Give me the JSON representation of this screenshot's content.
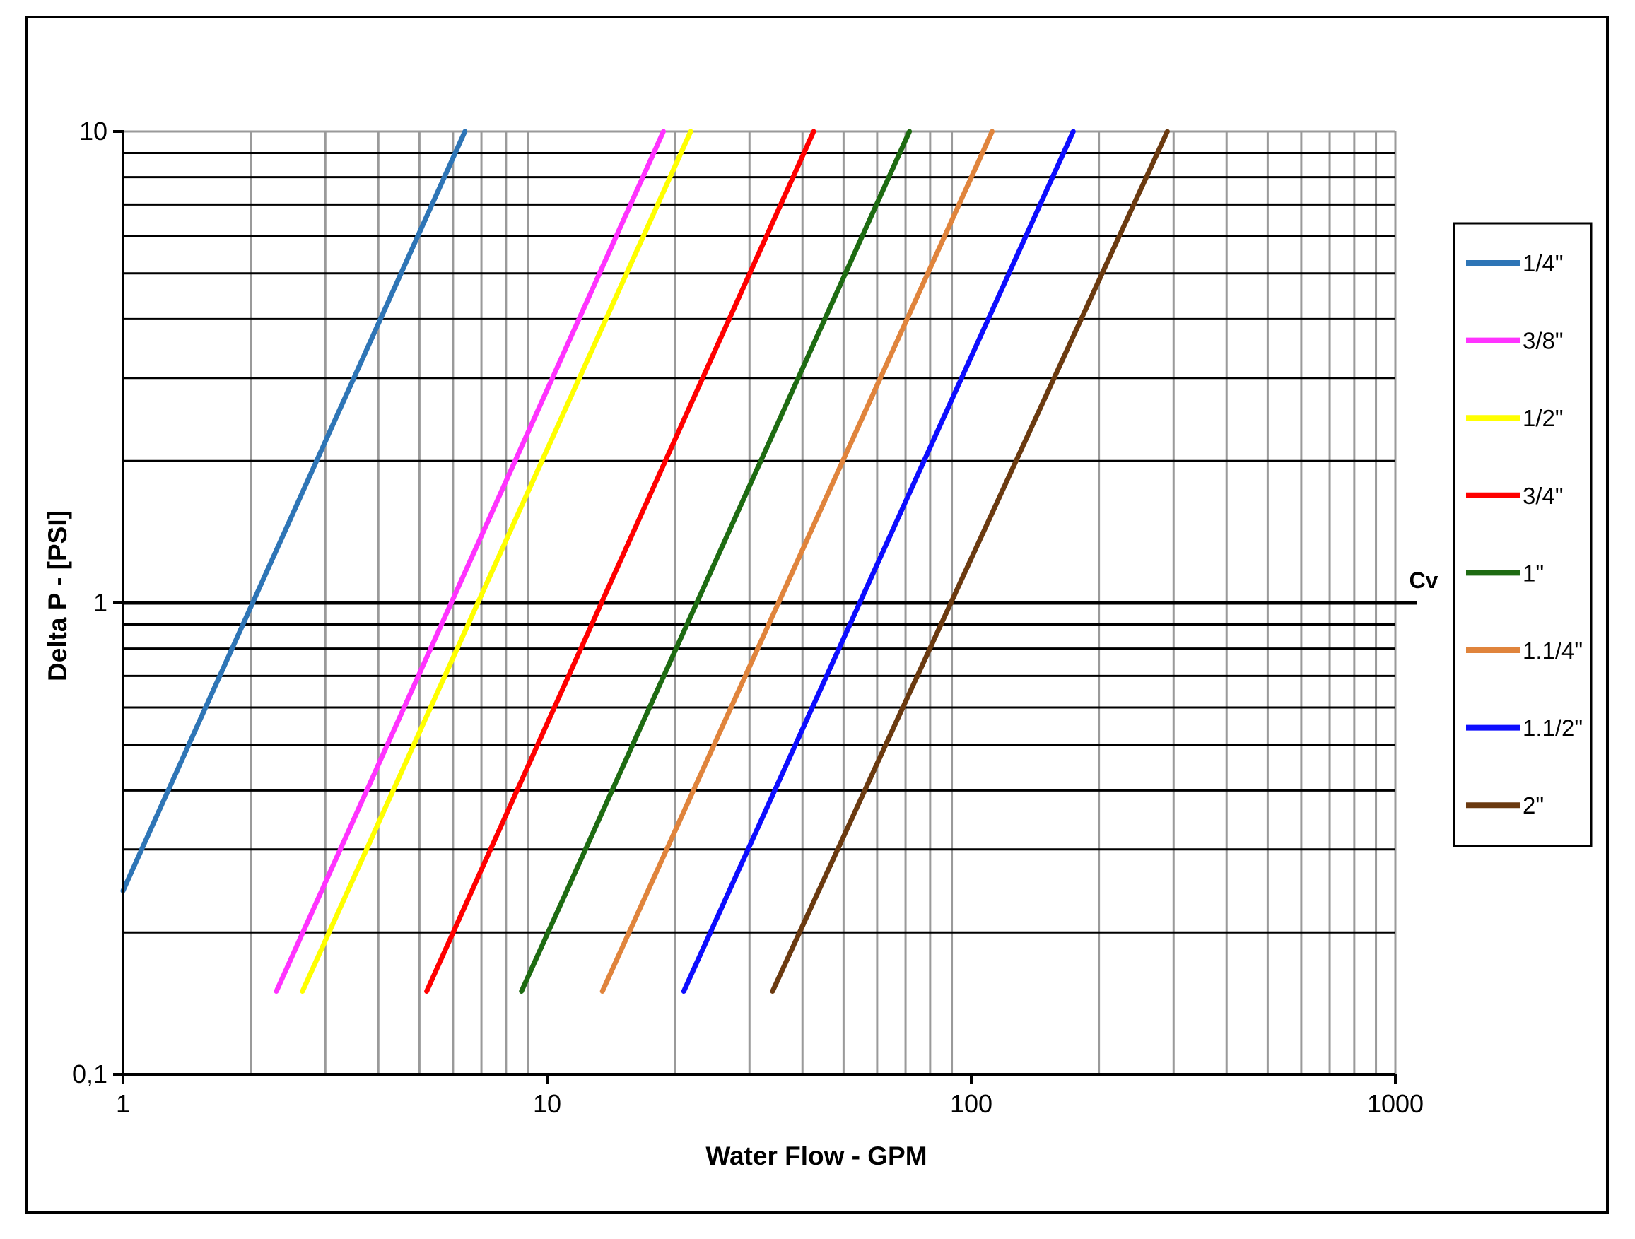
{
  "chart_data": {
    "type": "line",
    "title": "",
    "xlabel": "Water Flow - GPM",
    "ylabel": "Delta P - [PSI]",
    "x_scale": "log",
    "y_scale": "log",
    "xlim": [
      1,
      1000
    ],
    "ylim": [
      0.1,
      10
    ],
    "x_ticks": [
      {
        "value": 1,
        "label": "1"
      },
      {
        "value": 10,
        "label": "10"
      },
      {
        "value": 100,
        "label": "100"
      },
      {
        "value": 1000,
        "label": "1000"
      }
    ],
    "y_ticks": [
      {
        "value": 0.1,
        "label": "0,1"
      },
      {
        "value": 1,
        "label": "1"
      },
      {
        "value": 10,
        "label": "10"
      }
    ],
    "grid": true,
    "legend_position": "right",
    "reference_line": {
      "y": 1,
      "label": "Cv"
    },
    "series": [
      {
        "name": "1/4\"",
        "color": "#2e75b6",
        "x": [
          1.0,
          6.4
        ],
        "y": [
          0.245,
          10
        ]
      },
      {
        "name": "3/8\"",
        "color": "#ff33ff",
        "x": [
          2.3,
          18.8
        ],
        "y": [
          0.15,
          10
        ]
      },
      {
        "name": "1/2\"",
        "color": "#ffff00",
        "x": [
          2.65,
          21.8
        ],
        "y": [
          0.15,
          10
        ]
      },
      {
        "name": "3/4\"",
        "color": "#ff0000",
        "x": [
          5.2,
          42.5
        ],
        "y": [
          0.15,
          10
        ]
      },
      {
        "name": "1\"",
        "color": "#1e6b12",
        "x": [
          8.7,
          71.5
        ],
        "y": [
          0.15,
          10
        ]
      },
      {
        "name": "1.1/4\"",
        "color": "#e0843c",
        "x": [
          13.5,
          112
        ],
        "y": [
          0.15,
          10
        ]
      },
      {
        "name": "1.1/2\"",
        "color": "#0d0dff",
        "x": [
          21,
          174
        ],
        "y": [
          0.15,
          10
        ]
      },
      {
        "name": "2\"",
        "color": "#6b3a10",
        "x": [
          34,
          290
        ],
        "y": [
          0.15,
          10
        ]
      }
    ]
  }
}
